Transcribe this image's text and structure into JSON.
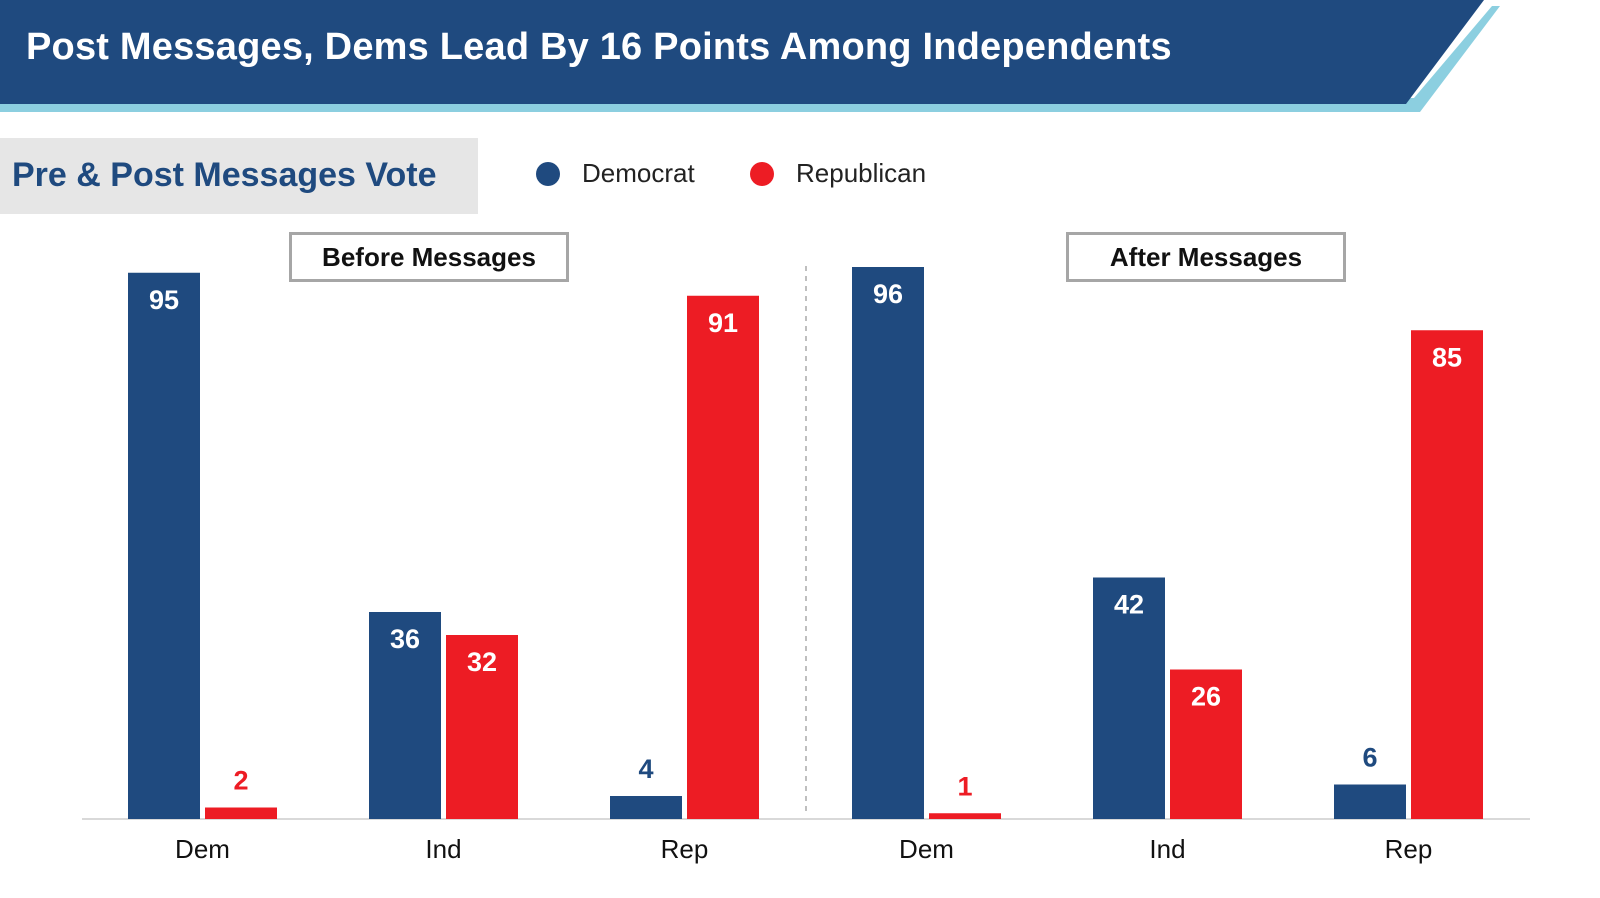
{
  "title": "Post Messages, Dems Lead By 16 Points Among Independents",
  "subtitle": "Pre & Post Messages Vote",
  "colors": {
    "banner": "#1f4a7f",
    "banner_accent": "#8ccfe0",
    "democrat": "#1f4a7f",
    "republican": "#ed1c24"
  },
  "chart_data": {
    "type": "bar",
    "ylim": [
      0,
      100
    ],
    "legend": {
      "position": "top",
      "entries": [
        {
          "name": "Democrat",
          "color": "#1f4a7f"
        },
        {
          "name": "Republican",
          "color": "#ed1c24"
        }
      ]
    },
    "panels": [
      {
        "label": "Before Messages",
        "categories": [
          "Dem",
          "Ind",
          "Rep"
        ],
        "series": [
          {
            "name": "Democrat",
            "values": [
              95,
              36,
              4
            ]
          },
          {
            "name": "Republican",
            "values": [
              2,
              32,
              91
            ]
          }
        ]
      },
      {
        "label": "After Messages",
        "categories": [
          "Dem",
          "Ind",
          "Rep"
        ],
        "series": [
          {
            "name": "Democrat",
            "values": [
              96,
              42,
              6
            ]
          },
          {
            "name": "Republican",
            "values": [
              1,
              26,
              85
            ]
          }
        ]
      }
    ]
  }
}
